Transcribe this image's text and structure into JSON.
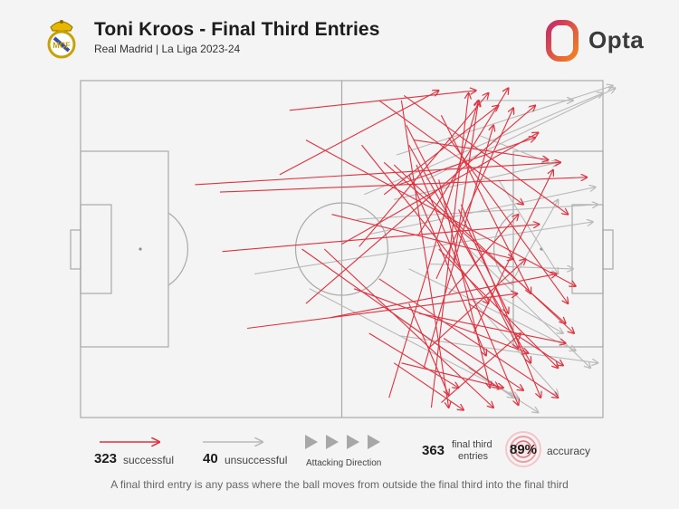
{
  "header": {
    "title": "Toni Kroos - Final Third Entries",
    "subtitle": "Real Madrid | La Liga 2023-24",
    "brand": "Opta",
    "crest_icon": "real-madrid-crest-icon",
    "logo_icon": "opta-logo-icon"
  },
  "colors": {
    "successful": "#e0323f",
    "unsuccessful": "#b9b9b9",
    "pitch_lines": "#a9a9a9",
    "background": "#f4f4f4",
    "opta_gradient": [
      "#c42a6b",
      "#f58220"
    ]
  },
  "legend": {
    "successful_count": "323",
    "successful_label": "successful",
    "unsuccessful_count": "40",
    "unsuccessful_label": "unsuccessful",
    "direction_label": "Attacking Direction",
    "entries_count": "363",
    "entries_label_1": "final third",
    "entries_label_2": "entries",
    "accuracy_value": "89%",
    "accuracy_label": "accuracy"
  },
  "footer_note": "A final third entry is any pass where the ball moves from outside the final third into the final third",
  "chart_data": {
    "type": "scatter",
    "title": "Toni Kroos - Final Third Entries",
    "subtitle": "Real Madrid | La Liga 2023-24",
    "pitch": {
      "length": 105,
      "width": 68,
      "attacking_direction": "left-to-right"
    },
    "counts": {
      "successful": 323,
      "unsuccessful": 40,
      "total": 363,
      "accuracy_pct": 89
    },
    "sample_passes": {
      "successful": [
        [
          23.0,
          21.0,
          96.5,
          16.5
        ],
        [
          28.5,
          34.5,
          92.2,
          29.0
        ],
        [
          28.0,
          22.5,
          101.8,
          19.5
        ],
        [
          45.3,
          12.0,
          99.5,
          41.5
        ],
        [
          64.0,
          21.0,
          91.4,
          11.5
        ],
        [
          50.5,
          27.0,
          87.0,
          36.0
        ],
        [
          45.3,
          45.0,
          91.4,
          5.0
        ],
        [
          50.3,
          47.8,
          95.7,
          39.0
        ],
        [
          33.5,
          50.0,
          87.8,
          43.0
        ],
        [
          66.0,
          13.0,
          90.5,
          57.0
        ],
        [
          61.0,
          16.5,
          97.5,
          49.0
        ],
        [
          63.0,
          17.0,
          99.2,
          51.0
        ],
        [
          65.5,
          9.0,
          88.0,
          54.0
        ],
        [
          74.0,
          11.5,
          98.0,
          45.0
        ],
        [
          60.0,
          40.0,
          96.0,
          64.0
        ],
        [
          64.5,
          4.0,
          74.0,
          66.0
        ],
        [
          72.0,
          20.0,
          82.3,
          62.0
        ],
        [
          56.0,
          33.5,
          82.0,
          2.5
        ],
        [
          74.0,
          43.0,
          88.0,
          27.0
        ],
        [
          70.0,
          54.0,
          89.5,
          36.0
        ],
        [
          79.0,
          51.0,
          95.0,
          18.0
        ],
        [
          72.0,
          34.0,
          96.0,
          58.0
        ],
        [
          76.5,
          25.0,
          92.5,
          64.0
        ],
        [
          68.0,
          47.0,
          97.5,
          53.0
        ],
        [
          64.5,
          57.0,
          85.0,
          62.0
        ],
        [
          66.0,
          19.0,
          81.5,
          55.5
        ],
        [
          44.5,
          34.0,
          84.0,
          62.0
        ],
        [
          58.0,
          51.0,
          76.0,
          62.0
        ],
        [
          66.0,
          45.0,
          74.0,
          63.5
        ],
        [
          52.5,
          33.0,
          92.0,
          10.5
        ],
        [
          67.0,
          12.0,
          94.0,
          16.0
        ],
        [
          72.5,
          7.0,
          90.5,
          43.0
        ],
        [
          42.0,
          6.0,
          79.5,
          2.0
        ],
        [
          65.0,
          3.0,
          98.0,
          27.0
        ],
        [
          61.0,
          23.0,
          84.0,
          5.0
        ],
        [
          75.0,
          36.5,
          80.0,
          4.0
        ],
        [
          62.0,
          64.0,
          80.0,
          4.0
        ],
        [
          69.0,
          58.0,
          83.0,
          9.0
        ],
        [
          40.0,
          19.0,
          72.0,
          2.0
        ],
        [
          70.5,
          66.0,
          78.0,
          2.5
        ],
        [
          78.0,
          45.0,
          97.0,
          57.5
        ],
        [
          72.5,
          65.0,
          88.5,
          51.0
        ],
        [
          49.0,
          34.0,
          83.0,
          66.0
        ],
        [
          67.5,
          17.0,
          88.0,
          65.5
        ],
        [
          55.0,
          42.0,
          90.0,
          55.0
        ],
        [
          60.0,
          4.0,
          89.0,
          25.0
        ],
        [
          68.0,
          31.0,
          86.0,
          1.5
        ],
        [
          73.0,
          52.0,
          89.0,
          62.5
        ],
        [
          76.0,
          26.0,
          86.0,
          47.0
        ],
        [
          63.0,
          57.0,
          77.0,
          66.5
        ],
        [
          56.5,
          13.0,
          82.0,
          45.0
        ],
        [
          71.5,
          40.0,
          87.0,
          5.5
        ]
      ],
      "unsuccessful": [
        [
          57.0,
          23.0,
          105.0,
          2.5
        ],
        [
          63.5,
          15.0,
          107.0,
          1.0
        ],
        [
          55.5,
          28.0,
          104.0,
          25.0
        ],
        [
          63.0,
          24.0,
          96.0,
          16.5
        ],
        [
          35.0,
          39.0,
          103.0,
          28.5
        ],
        [
          77.0,
          33.0,
          102.5,
          58.0
        ],
        [
          85.0,
          44.0,
          97.0,
          51.0
        ],
        [
          64.0,
          51.5,
          104.0,
          57.0
        ],
        [
          61.5,
          46.0,
          87.0,
          64.0
        ],
        [
          78.5,
          44.0,
          96.0,
          63.5
        ],
        [
          58.0,
          31.0,
          103.5,
          21.5
        ],
        [
          79.5,
          4.0,
          99.0,
          4.0
        ],
        [
          66.0,
          38.0,
          99.5,
          54.5
        ],
        [
          46.0,
          42.0,
          88.0,
          64.0
        ],
        [
          80.0,
          11.0,
          94.0,
          16.5
        ],
        [
          84.0,
          20.0,
          96.0,
          39.0
        ],
        [
          86.5,
          41.0,
          96.0,
          24.0
        ],
        [
          70.0,
          37.0,
          99.0,
          38.0
        ],
        [
          69.5,
          20.0,
          107.5,
          1.5
        ],
        [
          78.0,
          58.0,
          92.0,
          67.0
        ]
      ]
    }
  }
}
